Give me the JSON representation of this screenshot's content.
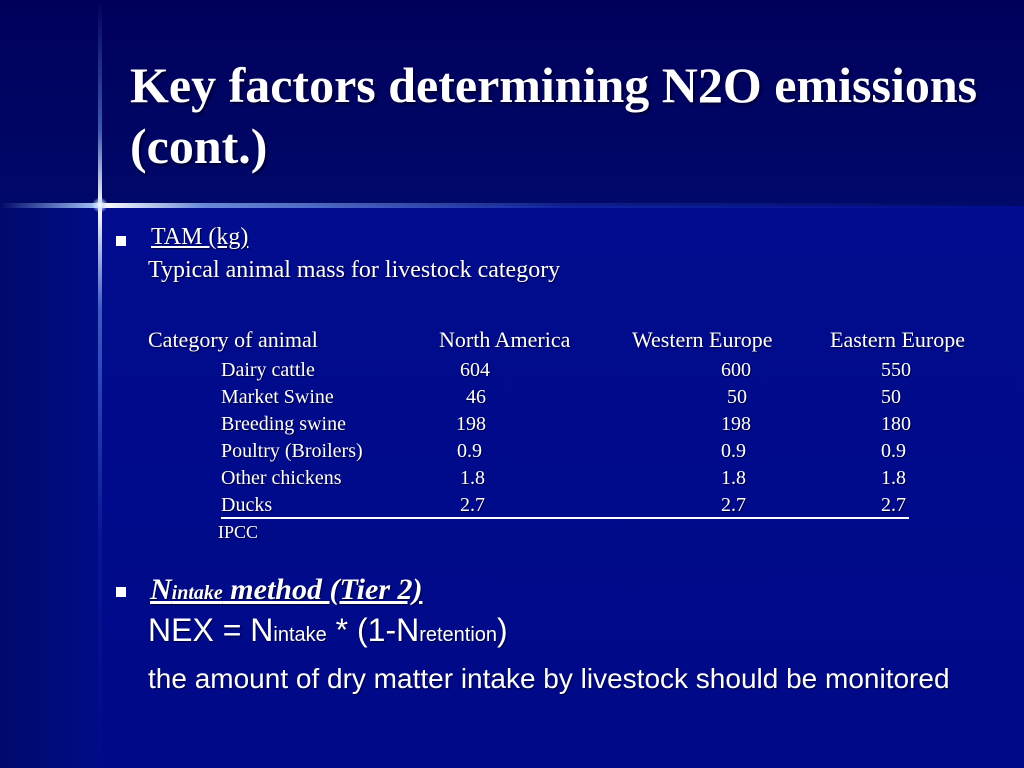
{
  "slide": {
    "title": "Key factors determining N2O emissions (cont.)"
  },
  "tam": {
    "heading": "TAM (kg)",
    "description": "Typical animal mass for livestock category",
    "table": {
      "headers": [
        "Category of animal",
        "North America",
        "Western Europe",
        "Eastern Europe"
      ],
      "rows": [
        [
          "Dairy cattle",
          "604",
          "600",
          "550"
        ],
        [
          "Market Swine",
          "46",
          "50",
          "50"
        ],
        [
          "Breeding swine",
          "198",
          "198",
          "180"
        ],
        [
          "Poultry (Broilers)",
          "0.9",
          "0.9",
          "0.9"
        ],
        [
          "Other chickens",
          "1.8",
          "1.8",
          "1.8"
        ],
        [
          "Ducks",
          "2.7",
          "2.7",
          "2.7"
        ]
      ],
      "source": "IPCC"
    }
  },
  "nintake": {
    "heading_main": "N",
    "heading_sub": "intake",
    "heading_rest": " method (Tier 2)",
    "formula_prefix": "NEX = N",
    "formula_sub1": "intake",
    "formula_mid": " * (1-N",
    "formula_sub2": "retention",
    "formula_end": ")",
    "description": "the amount of dry matter intake by livestock should be monitored"
  },
  "colors": {
    "background": "#000a8a",
    "text": "#ffffff"
  }
}
